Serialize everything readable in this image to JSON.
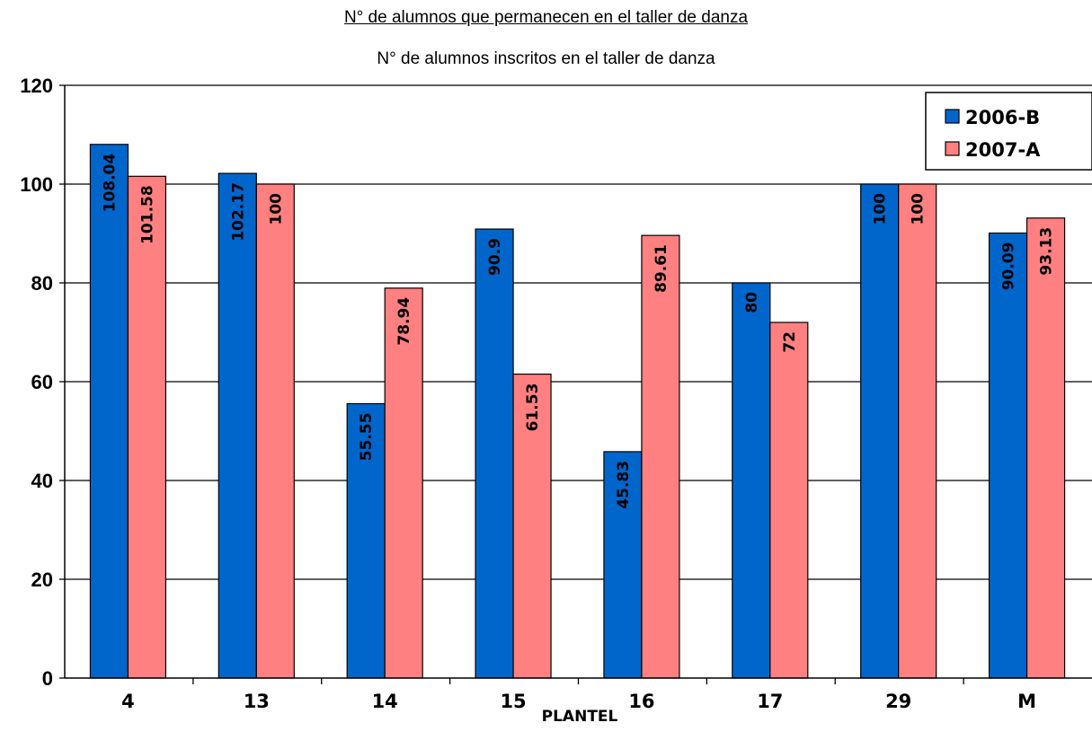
{
  "chart_data": {
    "type": "bar",
    "title": "N° de alumnos que permanecen en el taller de danza",
    "subtitle": "N° de alumnos inscritos en el taller de danza",
    "xlabel": "PLANTEL",
    "ylabel": "",
    "ylim": [
      0,
      120
    ],
    "yticks": [
      "0",
      "20",
      "40",
      "60",
      "80",
      "100",
      "120"
    ],
    "grid": true,
    "legend_position": "top-right",
    "categories": [
      "4",
      "13",
      "14",
      "15",
      "16",
      "17",
      "29",
      "M"
    ],
    "series": [
      {
        "name": "2006-B",
        "color": "#0066cc",
        "values": [
          108.04,
          102.17,
          55.55,
          90.9,
          45.83,
          80,
          100,
          90.09
        ],
        "labels": [
          "108.04",
          "102.17",
          "55.55",
          "90.9",
          "45.83",
          "80",
          "100",
          "90.09"
        ]
      },
      {
        "name": "2007-A",
        "color": "#ff8080",
        "values": [
          101.58,
          100,
          78.94,
          61.53,
          89.61,
          72,
          100,
          93.13
        ],
        "labels": [
          "101.58",
          "100",
          "78.94",
          "61.53",
          "89.61",
          "72",
          "100",
          "93.13"
        ]
      }
    ]
  }
}
